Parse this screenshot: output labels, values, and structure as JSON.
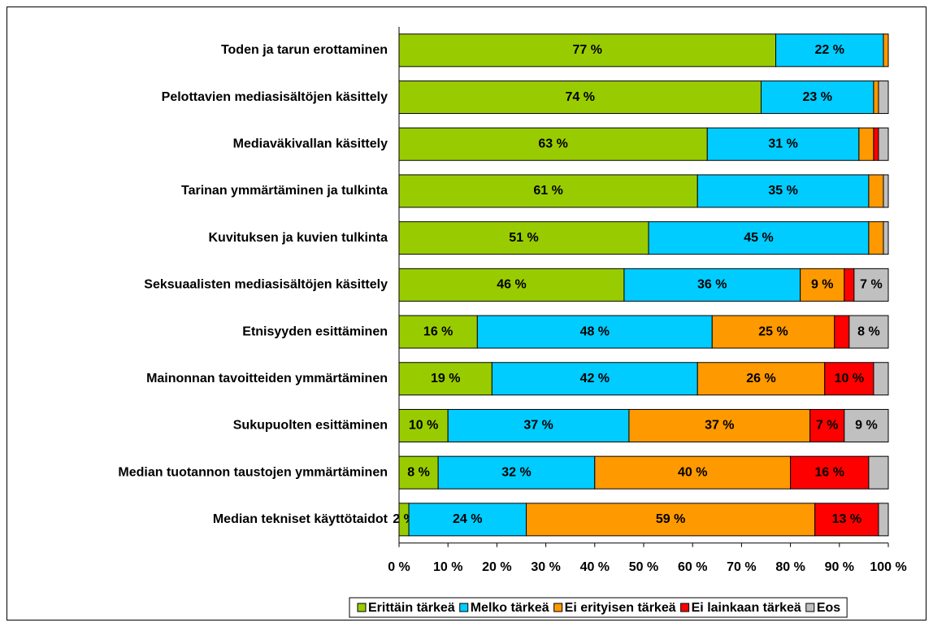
{
  "chart_data": {
    "type": "stacked_bar_horizontal",
    "categories": [
      "Toden ja tarun erottaminen",
      "Pelottavien mediasisältöjen käsittely",
      "Mediaväkivallan käsittely",
      "Tarinan ymmärtäminen ja tulkinta",
      "Kuvituksen ja kuvien tulkinta",
      "Seksuaalisten mediasisältöjen käsittely",
      "Etnisyyden esittäminen",
      "Mainonnan tavoitteiden ymmärtäminen",
      "Sukupuolten esittäminen",
      "Median tuotannon taustojen ymmärtäminen",
      "Median tekniset käyttötaidot"
    ],
    "series": [
      {
        "name": "Erittäin tärkeä",
        "color": "#99cc00",
        "values": [
          77,
          74,
          63,
          61,
          51,
          46,
          16,
          19,
          10,
          8,
          2
        ],
        "value_labels": [
          "77 %",
          "74 %",
          "63 %",
          "61 %",
          "51 %",
          "46 %",
          "16 %",
          "19 %",
          "10 %",
          "8 %",
          "2 %"
        ]
      },
      {
        "name": "Melko tärkeä",
        "color": "#00ccff",
        "values": [
          22,
          23,
          31,
          35,
          45,
          36,
          48,
          42,
          37,
          32,
          24
        ],
        "value_labels": [
          "22 %",
          "23 %",
          "31 %",
          "35 %",
          "45 %",
          "36 %",
          "48 %",
          "42 %",
          "37 %",
          "32 %",
          "24 %"
        ]
      },
      {
        "name": "Ei erityisen tärkeä",
        "color": "#ff9900",
        "values": [
          1,
          1,
          3,
          3,
          3,
          9,
          25,
          26,
          37,
          40,
          59
        ],
        "value_labels": [
          null,
          null,
          null,
          null,
          null,
          "9 %",
          "25 %",
          "26 %",
          "37 %",
          "40 %",
          "59 %"
        ]
      },
      {
        "name": "Ei lainkaan tärkeä",
        "color": "#ff0000",
        "values": [
          0,
          0,
          1,
          0,
          0,
          2,
          3,
          10,
          7,
          16,
          13
        ],
        "value_labels": [
          null,
          null,
          null,
          null,
          null,
          null,
          null,
          "10 %",
          "7 %",
          "16 %",
          "13 %"
        ]
      },
      {
        "name": "Eos",
        "color": "#c0c0c0",
        "values": [
          0,
          2,
          2,
          1,
          1,
          7,
          8,
          3,
          9,
          4,
          2
        ],
        "value_labels": [
          null,
          null,
          null,
          null,
          null,
          "7 %",
          "8 %",
          null,
          "9 %",
          null,
          null
        ]
      }
    ],
    "xlim": [
      0,
      100
    ],
    "xticks": [
      {
        "value": 0,
        "label": "0 %"
      },
      {
        "value": 10,
        "label": "10 %"
      },
      {
        "value": 20,
        "label": "20 %"
      },
      {
        "value": 30,
        "label": "30 %"
      },
      {
        "value": 40,
        "label": "40 %"
      },
      {
        "value": 50,
        "label": "50 %"
      },
      {
        "value": 60,
        "label": "60 %"
      },
      {
        "value": 70,
        "label": "70 %"
      },
      {
        "value": 80,
        "label": "80 %"
      },
      {
        "value": 90,
        "label": "90 %"
      },
      {
        "value": 100,
        "label": "100 %"
      }
    ],
    "legend": "bottom"
  }
}
